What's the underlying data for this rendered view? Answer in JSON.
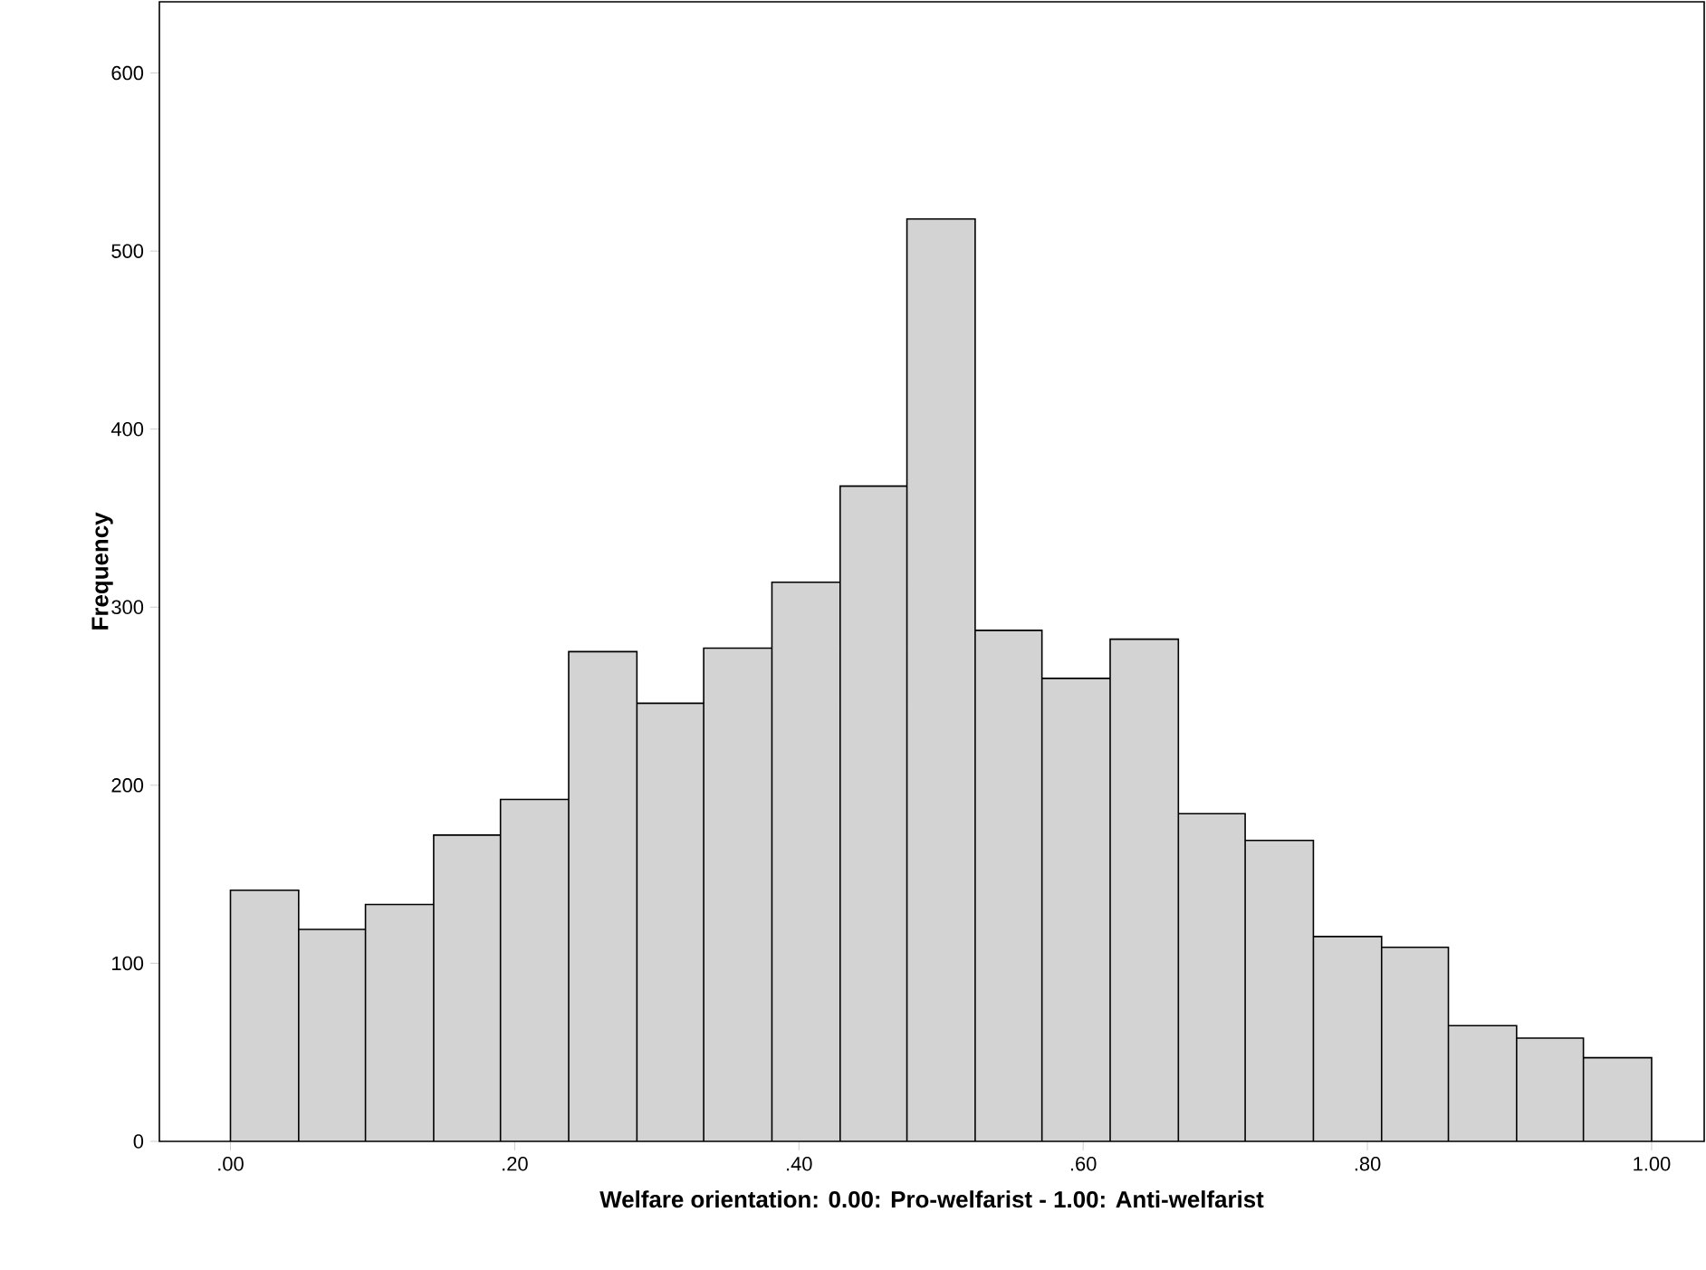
{
  "chart_data": {
    "type": "histogram",
    "xlabel": "Welfare orientation: 0.00: Pro-welfarist - 1.00: Anti-welfarist",
    "ylabel": "Frequency",
    "bins": [
      0,
      0.048,
      0.095,
      0.143,
      0.19,
      0.238,
      0.286,
      0.333,
      0.381,
      0.429,
      0.476,
      0.524,
      0.571,
      0.619,
      0.667,
      0.714,
      0.762,
      0.81,
      0.857,
      0.905,
      0.952,
      1
    ],
    "values": [
      141,
      119,
      133,
      172,
      192,
      275,
      246,
      277,
      314,
      368,
      518,
      287,
      260,
      282,
      184,
      169,
      115,
      109,
      65,
      58,
      47
    ],
    "color": "#d3d3d3",
    "xlim": [
      -0.05,
      1.037
    ],
    "ylim": [
      0,
      640
    ],
    "xticks": [
      {
        "value": 0,
        "label": ".00"
      },
      {
        "value": 0.2,
        "label": ".20"
      },
      {
        "value": 0.4,
        "label": ".40"
      },
      {
        "value": 0.6,
        "label": ".60"
      },
      {
        "value": 0.8,
        "label": ".80"
      },
      {
        "value": 1,
        "label": "1.00"
      }
    ],
    "yticks": [
      0,
      100,
      200,
      300,
      400,
      500,
      600
    ],
    "grid": false
  }
}
